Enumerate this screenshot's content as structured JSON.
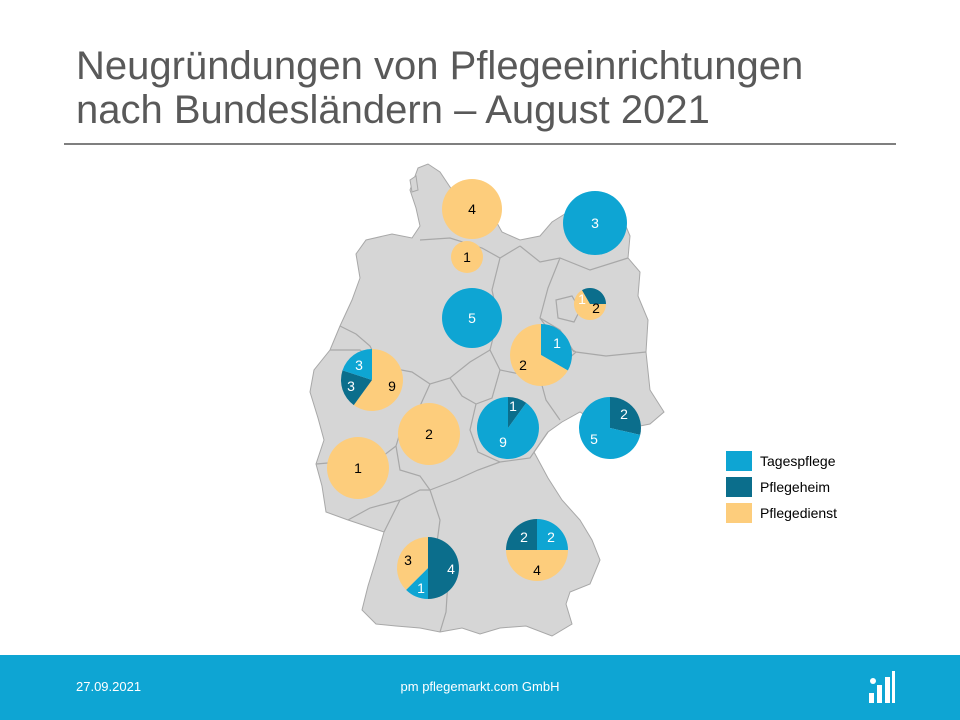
{
  "slide": {
    "title_line1": "Neugründungen von Pflegeeinrichtungen",
    "title_line2": "nach Bundesländern – August 2021"
  },
  "legend": [
    {
      "name": "Tagespflege",
      "color": "#0ea5d3"
    },
    {
      "name": "Pflegeheim",
      "color": "#0b6e8c"
    },
    {
      "name": "Pflegedienst",
      "color": "#fdcd7c"
    }
  ],
  "map": {
    "base_color": "#d6d6d6",
    "border_color": "#a8a8a8",
    "regions": [
      {
        "name": "Schleswig-Holstein",
        "counts": {
          "Tagespflege": 0,
          "Pflegeheim": 0,
          "Pflegedienst": 4
        }
      },
      {
        "name": "Hamburg",
        "counts": {
          "Tagespflege": 0,
          "Pflegeheim": 0,
          "Pflegedienst": 1
        }
      },
      {
        "name": "Mecklenburg-Vorpommern",
        "counts": {
          "Tagespflege": 3,
          "Pflegeheim": 0,
          "Pflegedienst": 0
        }
      },
      {
        "name": "Berlin/Brandenburg",
        "counts": {
          "Tagespflege": 0,
          "Pflegeheim": 1,
          "Pflegedienst": 2
        }
      },
      {
        "name": "Niedersachsen",
        "counts": {
          "Tagespflege": 5,
          "Pflegeheim": 0,
          "Pflegedienst": 0
        }
      },
      {
        "name": "Sachsen-Anhalt",
        "counts": {
          "Tagespflege": 1,
          "Pflegeheim": 0,
          "Pflegedienst": 2
        }
      },
      {
        "name": "Nordrhein-Westfalen",
        "counts": {
          "Tagespflege": 3,
          "Pflegeheim": 3,
          "Pflegedienst": 9
        }
      },
      {
        "name": "Hessen",
        "counts": {
          "Tagespflege": 0,
          "Pflegeheim": 0,
          "Pflegedienst": 2
        }
      },
      {
        "name": "Thüringen",
        "counts": {
          "Tagespflege": 9,
          "Pflegeheim": 1,
          "Pflegedienst": 0
        }
      },
      {
        "name": "Sachsen",
        "counts": {
          "Tagespflege": 5,
          "Pflegeheim": 2,
          "Pflegedienst": 0
        }
      },
      {
        "name": "Rheinland-Pfalz",
        "counts": {
          "Tagespflege": 0,
          "Pflegeheim": 0,
          "Pflegedienst": 1
        }
      },
      {
        "name": "Bayern",
        "counts": {
          "Tagespflege": 2,
          "Pflegeheim": 2,
          "Pflegedienst": 4
        }
      },
      {
        "name": "Baden-Württemberg",
        "counts": {
          "Tagespflege": 1,
          "Pflegeheim": 4,
          "Pflegedienst": 3
        }
      }
    ]
  },
  "footer": {
    "date": "27.09.2021",
    "company": "pm pflegemarkt.com GmbH",
    "logo_icon": "bar-chart-logo-icon"
  }
}
